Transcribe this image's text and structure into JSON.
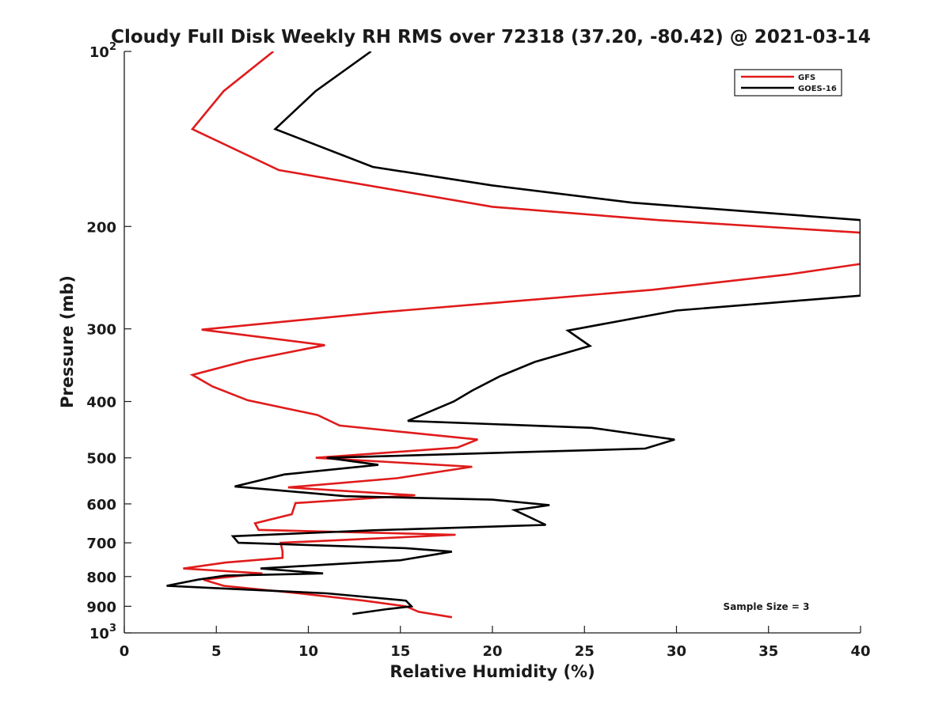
{
  "chart_data": {
    "type": "line",
    "title": "Cloudy Full Disk Weekly RH RMS over 72318 (37.20, -80.42) @ 2021-03-14",
    "xlabel": "Relative Humidity (%)",
    "ylabel": "Pressure (mb)",
    "xlim": [
      0,
      40
    ],
    "ylim": [
      100,
      1000
    ],
    "yscale": "log",
    "yaxis_reversed": true,
    "grid": false,
    "legend_position": "top-right",
    "x_ticks": [
      0,
      5,
      10,
      15,
      20,
      25,
      30,
      35,
      40
    ],
    "x_tick_labels": [
      "0",
      "5",
      "10",
      "15",
      "20",
      "25",
      "30",
      "35",
      "40"
    ],
    "y_ticks": [
      100,
      200,
      300,
      400,
      500,
      600,
      700,
      800,
      900,
      1000
    ],
    "y_tick_labels": [
      {
        "base": "10",
        "exp": "2"
      },
      {
        "base": "200",
        "exp": ""
      },
      {
        "base": "300",
        "exp": ""
      },
      {
        "base": "400",
        "exp": ""
      },
      {
        "base": "500",
        "exp": ""
      },
      {
        "base": "600",
        "exp": ""
      },
      {
        "base": "700",
        "exp": ""
      },
      {
        "base": "800",
        "exp": ""
      },
      {
        "base": "900",
        "exp": ""
      },
      {
        "base": "10",
        "exp": "3"
      }
    ],
    "series": [
      {
        "name": "GFS",
        "color": "#e01b1b",
        "points": [
          [
            8.1,
            100
          ],
          [
            5.4,
            117
          ],
          [
            3.7,
            136
          ],
          [
            8.4,
            160
          ],
          [
            20.0,
            185
          ],
          [
            29.0,
            195
          ],
          [
            40.0,
            205
          ],
          [
            40.0,
            232
          ],
          [
            36.0,
            242
          ],
          [
            28.7,
            257
          ],
          [
            13.9,
            281
          ],
          [
            4.2,
            301
          ],
          [
            10.9,
            320
          ],
          [
            6.7,
            340
          ],
          [
            3.7,
            360
          ],
          [
            4.8,
            377
          ],
          [
            6.7,
            398
          ],
          [
            10.5,
            422
          ],
          [
            11.7,
            440
          ],
          [
            19.2,
            465
          ],
          [
            18.1,
            480
          ],
          [
            10.4,
            500
          ],
          [
            18.9,
            518
          ],
          [
            14.8,
            542
          ],
          [
            8.9,
            562
          ],
          [
            15.8,
            580
          ],
          [
            9.3,
            598
          ],
          [
            9.1,
            625
          ],
          [
            7.1,
            648
          ],
          [
            7.3,
            665
          ],
          [
            18.0,
            678
          ],
          [
            8.5,
            700
          ],
          [
            8.6,
            725
          ],
          [
            8.6,
            743
          ],
          [
            5.5,
            757
          ],
          [
            3.2,
            775
          ],
          [
            7.5,
            790
          ],
          [
            4.3,
            810
          ],
          [
            5.4,
            830
          ],
          [
            9.5,
            855
          ],
          [
            13.0,
            880
          ],
          [
            15.3,
            900
          ],
          [
            16.0,
            920
          ],
          [
            17.8,
            940
          ]
        ]
      },
      {
        "name": "GOES-16",
        "color": "#000000",
        "points": [
          [
            13.4,
            100
          ],
          [
            10.4,
            117
          ],
          [
            8.2,
            136
          ],
          [
            13.5,
            158
          ],
          [
            20.0,
            170
          ],
          [
            27.6,
            182
          ],
          [
            40.0,
            195
          ],
          [
            40.0,
            263
          ],
          [
            30.0,
            279
          ],
          [
            24.1,
            302
          ],
          [
            25.3,
            321
          ],
          [
            22.3,
            342
          ],
          [
            20.4,
            362
          ],
          [
            18.9,
            383
          ],
          [
            17.9,
            400
          ],
          [
            15.4,
            432
          ],
          [
            25.4,
            444
          ],
          [
            29.9,
            465
          ],
          [
            28.3,
            482
          ],
          [
            11.0,
            500
          ],
          [
            13.8,
            514
          ],
          [
            8.7,
            534
          ],
          [
            6.0,
            560
          ],
          [
            12.0,
            582
          ],
          [
            20.0,
            590
          ],
          [
            23.1,
            603
          ],
          [
            21.2,
            615
          ],
          [
            22.0,
            632
          ],
          [
            22.9,
            652
          ],
          [
            13.5,
            666
          ],
          [
            5.9,
            682
          ],
          [
            6.2,
            700
          ],
          [
            15.3,
            715
          ],
          [
            17.8,
            725
          ],
          [
            15.0,
            750
          ],
          [
            7.4,
            775
          ],
          [
            10.8,
            790
          ],
          [
            5.5,
            797
          ],
          [
            4.0,
            810
          ],
          [
            2.3,
            830
          ],
          [
            11.0,
            855
          ],
          [
            15.3,
            880
          ],
          [
            15.6,
            900
          ],
          [
            14.3,
            910
          ],
          [
            12.4,
            928
          ]
        ]
      }
    ],
    "annotation": "Sample Size = 3"
  }
}
